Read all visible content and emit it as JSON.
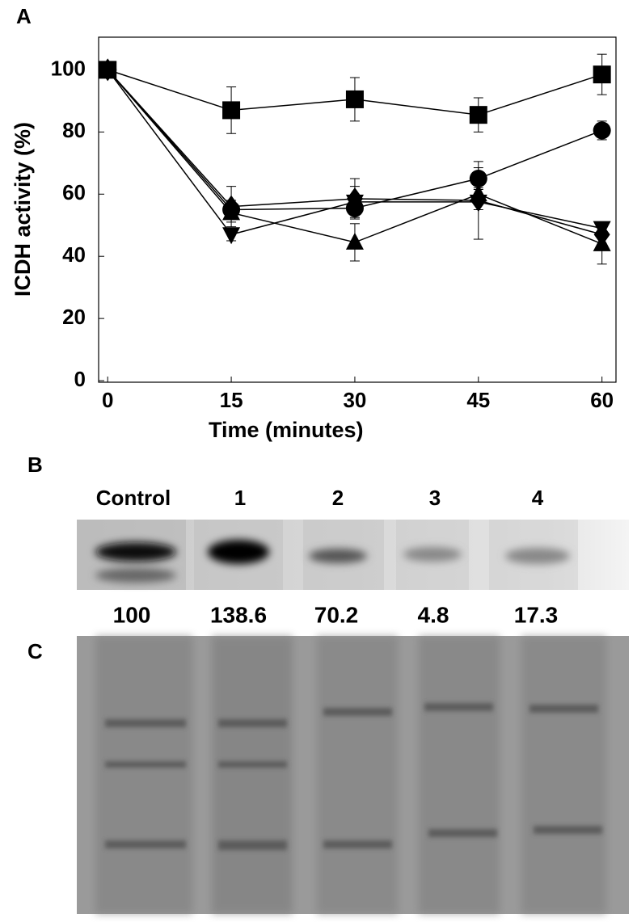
{
  "chart_data": {
    "type": "line",
    "panel_label": "A",
    "x_label": "Time (minutes)",
    "y_label": "ICDH activity (%)",
    "x": [
      0,
      15,
      30,
      45,
      60
    ],
    "xlim": [
      -1.1,
      61.7
    ],
    "xticks": [
      0,
      15,
      30,
      45,
      60
    ],
    "ylim": [
      -0.5,
      110.5
    ],
    "yticks": [
      0,
      20,
      40,
      60,
      80,
      100
    ],
    "series": [
      {
        "marker": "square",
        "color": "#000000",
        "values": [
          100,
          87,
          90.5,
          85.5,
          98.5
        ],
        "errors": [
          0,
          7.5,
          7,
          5.5,
          6.5
        ]
      },
      {
        "marker": "circle",
        "color": "#000000",
        "values": [
          100,
          55,
          55.5,
          65,
          80.5
        ],
        "errors": [
          0,
          3,
          3,
          3.5,
          3
        ]
      },
      {
        "marker": "diamond",
        "color": "#000000",
        "values": [
          100,
          56,
          58.5,
          58,
          47
        ],
        "errors": [
          0,
          6.5,
          6.5,
          12.5,
          3
        ]
      },
      {
        "marker": "triangle-down",
        "color": "#000000",
        "values": [
          100,
          47,
          57.5,
          57.5,
          49
        ],
        "errors": [
          0,
          2,
          5,
          2.5,
          2
        ]
      },
      {
        "marker": "triangle-up",
        "color": "#000000",
        "values": [
          100,
          54,
          44.5,
          60,
          44
        ],
        "errors": [
          0,
          3,
          6,
          2,
          6.5
        ]
      }
    ]
  },
  "gel_b": {
    "panel_label": "B",
    "lanes": [
      "Control",
      "1",
      "2",
      "3",
      "4"
    ],
    "intensities": [
      "100",
      "138.6",
      "70.2",
      "4.8",
      "17.3"
    ]
  },
  "gel_c": {
    "panel_label": "C"
  }
}
